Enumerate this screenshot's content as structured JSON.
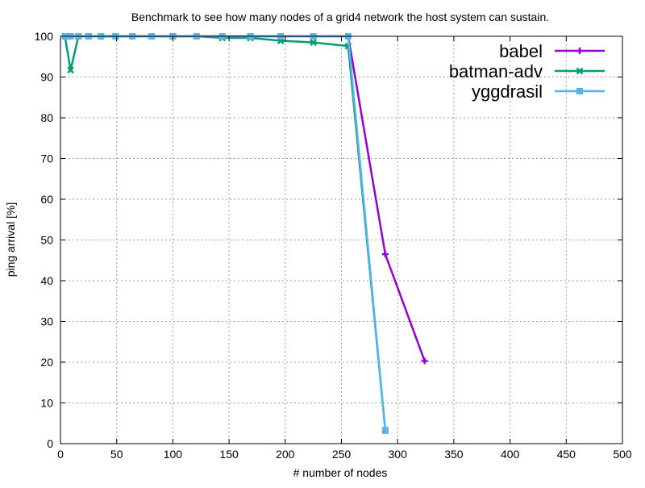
{
  "chart_data": {
    "type": "line",
    "title": "Benchmark to see how many nodes of a grid4 network the host system can sustain.",
    "xlabel": "# number of nodes",
    "ylabel": "ping arrival [%]",
    "xlim": [
      0,
      500
    ],
    "ylim": [
      0,
      100
    ],
    "xticks": [
      "0",
      "50",
      "100",
      "150",
      "200",
      "250",
      "300",
      "350",
      "400",
      "450",
      "500"
    ],
    "yticks": [
      "0",
      "10",
      "20",
      "30",
      "40",
      "50",
      "60",
      "70",
      "80",
      "90",
      "100"
    ],
    "grid": true,
    "legend_position": "top-right",
    "series": [
      {
        "name": "babel",
        "color": "#9400d3",
        "marker": "plus",
        "x": [
          4,
          9,
          16,
          25,
          36,
          49,
          64,
          81,
          100,
          121,
          144,
          169,
          196,
          225,
          256,
          289,
          324
        ],
        "y": [
          100,
          100,
          100,
          100,
          100,
          100,
          100,
          100,
          100,
          100,
          100,
          100,
          100,
          100,
          100,
          46.5,
          20.3
        ]
      },
      {
        "name": "batman-adv",
        "color": "#009e73",
        "marker": "cross",
        "x": [
          4,
          9,
          16,
          25,
          36,
          49,
          64,
          81,
          100,
          121,
          144,
          169,
          196,
          225,
          256,
          289
        ],
        "y": [
          100,
          91.7,
          100,
          100,
          100,
          100,
          100,
          100,
          100,
          100,
          99.6,
          99.6,
          98.9,
          98.5,
          97.6,
          3.3
        ]
      },
      {
        "name": "yggdrasil",
        "color": "#56b4e9",
        "marker": "square",
        "x": [
          4,
          9,
          16,
          25,
          36,
          49,
          64,
          81,
          100,
          121,
          144,
          169,
          196,
          225,
          256,
          289
        ],
        "y": [
          100,
          100,
          100,
          100,
          100,
          100,
          100,
          100,
          100,
          100,
          100,
          100,
          100,
          100,
          100,
          3.2
        ]
      }
    ]
  }
}
